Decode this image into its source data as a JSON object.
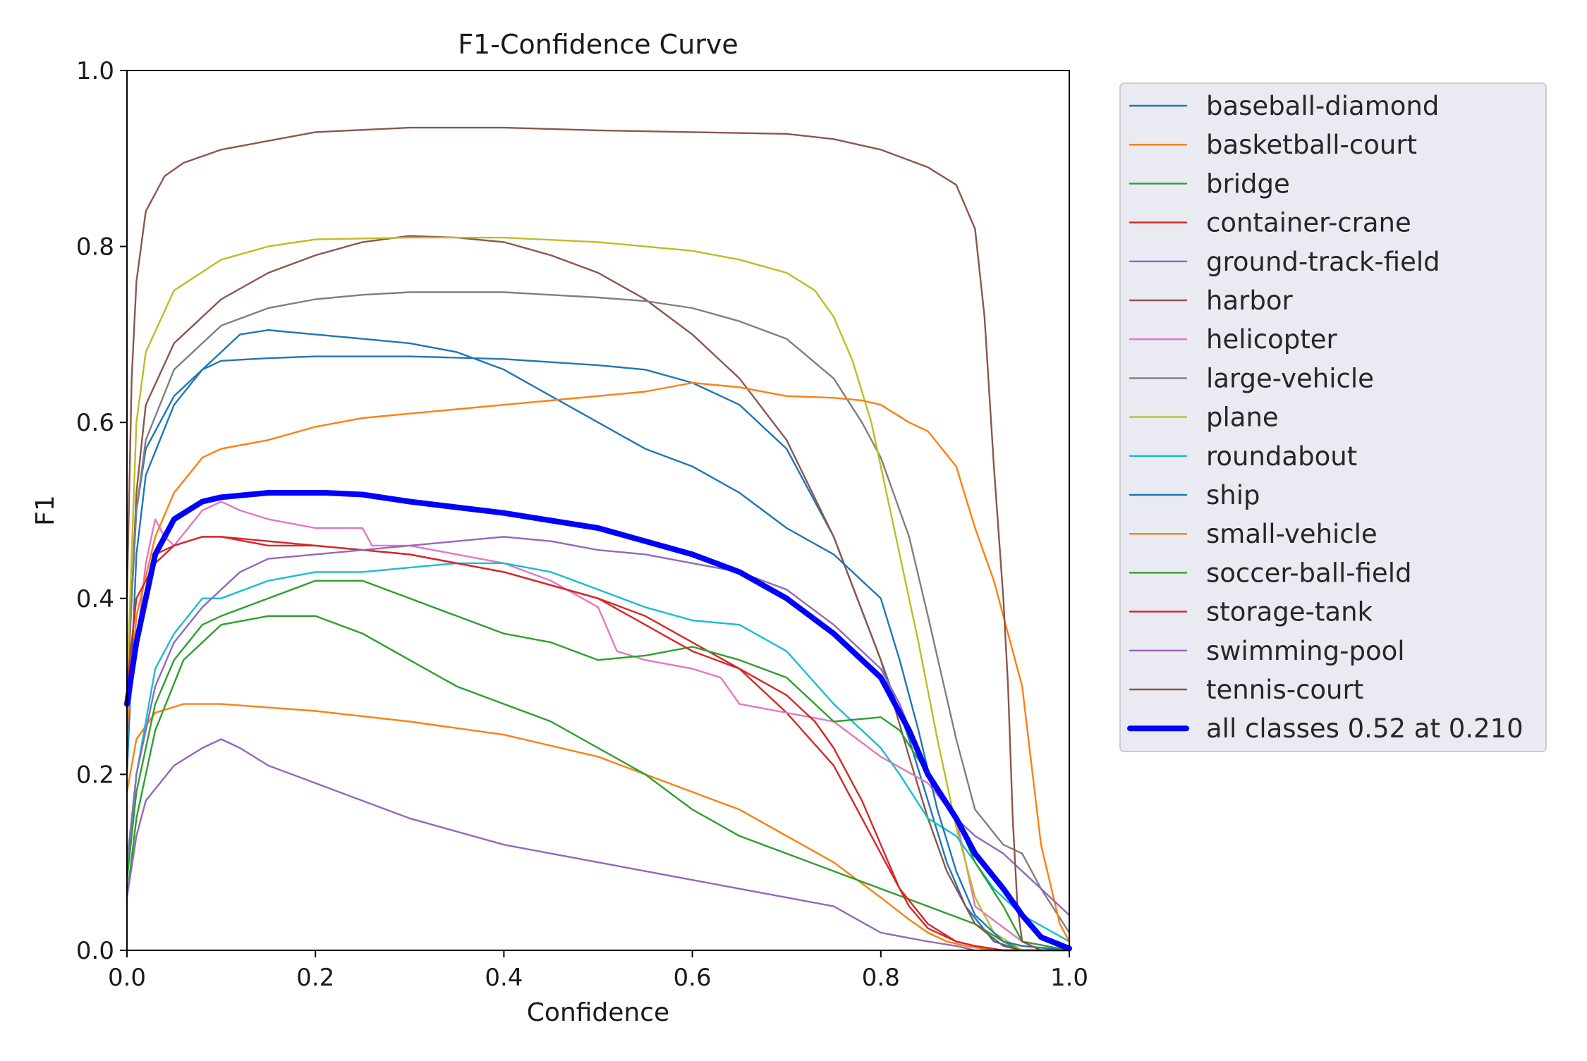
{
  "chart_data": {
    "type": "line",
    "title": "F1-Confidence Curve",
    "xlabel": "Confidence",
    "ylabel": "F1",
    "xlim": [
      0,
      1
    ],
    "ylim": [
      0,
      1
    ],
    "grid": false,
    "legend_position": "outside-right",
    "x_ticks": [
      "0.0",
      "0.2",
      "0.4",
      "0.6",
      "0.8",
      "1.0"
    ],
    "y_ticks": [
      "0.0",
      "0.2",
      "0.4",
      "0.6",
      "0.8",
      "1.0"
    ],
    "series": [
      {
        "name": "baseball-diamond",
        "color": "#1f77b4",
        "x": [
          0,
          0.01,
          0.02,
          0.05,
          0.08,
          0.1,
          0.15,
          0.2,
          0.3,
          0.4,
          0.5,
          0.55,
          0.6,
          0.65,
          0.7,
          0.75,
          0.8,
          0.83,
          0.85,
          0.87,
          0.89,
          0.92,
          0.95,
          1.0
        ],
        "y": [
          0.3,
          0.5,
          0.57,
          0.63,
          0.66,
          0.67,
          0.673,
          0.675,
          0.675,
          0.672,
          0.665,
          0.66,
          0.645,
          0.62,
          0.57,
          0.47,
          0.33,
          0.24,
          0.17,
          0.1,
          0.05,
          0.01,
          0.0,
          0.0
        ]
      },
      {
        "name": "basketball-court",
        "color": "#ff7f0e",
        "x": [
          0,
          0.01,
          0.03,
          0.06,
          0.1,
          0.2,
          0.3,
          0.4,
          0.5,
          0.55,
          0.6,
          0.65,
          0.7,
          0.75,
          0.8,
          0.83,
          0.85,
          0.87,
          0.89,
          0.92,
          0.95,
          0.98,
          1.0
        ],
        "y": [
          0.18,
          0.24,
          0.27,
          0.28,
          0.28,
          0.272,
          0.26,
          0.245,
          0.22,
          0.2,
          0.18,
          0.16,
          0.13,
          0.1,
          0.06,
          0.035,
          0.02,
          0.01,
          0.005,
          0.0,
          0.0,
          0.0,
          0.0
        ]
      },
      {
        "name": "bridge",
        "color": "#2ca02c",
        "x": [
          0,
          0.01,
          0.03,
          0.06,
          0.1,
          0.15,
          0.2,
          0.25,
          0.3,
          0.35,
          0.4,
          0.45,
          0.5,
          0.55,
          0.6,
          0.65,
          0.7,
          0.75,
          0.8,
          0.85,
          0.9,
          0.93,
          0.95,
          1.0
        ],
        "y": [
          0.06,
          0.15,
          0.25,
          0.33,
          0.37,
          0.38,
          0.38,
          0.36,
          0.33,
          0.3,
          0.28,
          0.26,
          0.23,
          0.2,
          0.16,
          0.13,
          0.11,
          0.09,
          0.07,
          0.05,
          0.03,
          0.01,
          0.0,
          0.0
        ]
      },
      {
        "name": "container-crane",
        "color": "#d62728",
        "x": [
          0,
          0.03,
          0.05,
          0.08,
          0.1,
          0.15,
          0.2,
          0.3,
          0.4,
          0.5,
          0.55,
          0.6,
          0.65,
          0.7,
          0.75,
          0.77,
          0.8,
          0.83,
          0.85,
          0.88,
          0.9,
          0.93,
          0.95,
          1.0
        ],
        "y": [
          0.29,
          0.45,
          0.46,
          0.47,
          0.47,
          0.46,
          0.46,
          0.45,
          0.43,
          0.4,
          0.38,
          0.35,
          0.32,
          0.27,
          0.21,
          0.17,
          0.11,
          0.05,
          0.025,
          0.01,
          0.005,
          0.0,
          0.0,
          0.0
        ]
      },
      {
        "name": "ground-track-field",
        "color": "#9467bd",
        "x": [
          0,
          0.01,
          0.02,
          0.05,
          0.08,
          0.1,
          0.12,
          0.15,
          0.2,
          0.3,
          0.4,
          0.5,
          0.6,
          0.7,
          0.75,
          0.8,
          0.85,
          0.88,
          0.9,
          0.95,
          1.0
        ],
        "y": [
          0.06,
          0.13,
          0.17,
          0.21,
          0.23,
          0.24,
          0.23,
          0.21,
          0.19,
          0.15,
          0.12,
          0.1,
          0.08,
          0.06,
          0.05,
          0.02,
          0.01,
          0.005,
          0.0,
          0.0,
          0.0
        ]
      },
      {
        "name": "harbor",
        "color": "#8c564b",
        "x": [
          0,
          0.01,
          0.02,
          0.05,
          0.1,
          0.15,
          0.2,
          0.25,
          0.3,
          0.35,
          0.4,
          0.45,
          0.5,
          0.55,
          0.6,
          0.65,
          0.7,
          0.75,
          0.8,
          0.83,
          0.85,
          0.87,
          0.9,
          0.93,
          0.95,
          1.0
        ],
        "y": [
          0.28,
          0.52,
          0.62,
          0.69,
          0.74,
          0.77,
          0.79,
          0.805,
          0.812,
          0.81,
          0.805,
          0.79,
          0.77,
          0.74,
          0.7,
          0.65,
          0.58,
          0.47,
          0.33,
          0.22,
          0.15,
          0.09,
          0.03,
          0.005,
          0.0,
          0.0
        ]
      },
      {
        "name": "helicopter",
        "color": "#e377c2",
        "x": [
          0,
          0.02,
          0.03,
          0.04,
          0.05,
          0.08,
          0.1,
          0.12,
          0.15,
          0.2,
          0.25,
          0.26,
          0.3,
          0.4,
          0.45,
          0.5,
          0.52,
          0.55,
          0.6,
          0.63,
          0.65,
          0.7,
          0.75,
          0.8,
          0.85,
          0.88,
          0.9,
          0.95,
          1.0
        ],
        "y": [
          0.25,
          0.44,
          0.49,
          0.47,
          0.46,
          0.5,
          0.51,
          0.5,
          0.49,
          0.48,
          0.48,
          0.46,
          0.46,
          0.44,
          0.42,
          0.39,
          0.34,
          0.33,
          0.32,
          0.31,
          0.28,
          0.27,
          0.26,
          0.22,
          0.19,
          0.15,
          0.05,
          0.01,
          0.0
        ]
      },
      {
        "name": "large-vehicle",
        "color": "#7f7f7f",
        "x": [
          0,
          0.01,
          0.02,
          0.05,
          0.1,
          0.15,
          0.2,
          0.25,
          0.3,
          0.4,
          0.5,
          0.55,
          0.6,
          0.65,
          0.7,
          0.75,
          0.78,
          0.8,
          0.83,
          0.85,
          0.88,
          0.9,
          0.93,
          0.95,
          0.97,
          1.0
        ],
        "y": [
          0.3,
          0.5,
          0.58,
          0.66,
          0.71,
          0.73,
          0.74,
          0.745,
          0.748,
          0.748,
          0.742,
          0.738,
          0.73,
          0.715,
          0.695,
          0.65,
          0.6,
          0.56,
          0.47,
          0.38,
          0.24,
          0.16,
          0.12,
          0.11,
          0.07,
          0.02
        ]
      },
      {
        "name": "plane",
        "color": "#bcbd22",
        "x": [
          0,
          0.01,
          0.02,
          0.05,
          0.1,
          0.15,
          0.2,
          0.3,
          0.4,
          0.5,
          0.6,
          0.65,
          0.7,
          0.73,
          0.75,
          0.77,
          0.79,
          0.8,
          0.82,
          0.84,
          0.86,
          0.88,
          0.9,
          0.92,
          0.95,
          1.0
        ],
        "y": [
          0.3,
          0.6,
          0.68,
          0.75,
          0.785,
          0.8,
          0.808,
          0.81,
          0.81,
          0.805,
          0.795,
          0.785,
          0.77,
          0.75,
          0.72,
          0.67,
          0.6,
          0.55,
          0.45,
          0.35,
          0.24,
          0.14,
          0.06,
          0.02,
          0.0,
          0.0
        ]
      },
      {
        "name": "roundabout",
        "color": "#17becf",
        "x": [
          0,
          0.01,
          0.03,
          0.05,
          0.08,
          0.1,
          0.15,
          0.2,
          0.25,
          0.3,
          0.35,
          0.4,
          0.45,
          0.5,
          0.55,
          0.6,
          0.65,
          0.7,
          0.75,
          0.8,
          0.82,
          0.85,
          0.88,
          0.9,
          0.92,
          0.95,
          1.0
        ],
        "y": [
          0.08,
          0.2,
          0.32,
          0.36,
          0.4,
          0.4,
          0.42,
          0.43,
          0.43,
          0.435,
          0.44,
          0.44,
          0.43,
          0.41,
          0.39,
          0.375,
          0.37,
          0.34,
          0.28,
          0.23,
          0.2,
          0.15,
          0.13,
          0.1,
          0.07,
          0.04,
          0.01
        ]
      },
      {
        "name": "ship",
        "color": "#1f77b4",
        "x": [
          0,
          0.01,
          0.02,
          0.05,
          0.08,
          0.1,
          0.12,
          0.15,
          0.2,
          0.25,
          0.3,
          0.35,
          0.4,
          0.45,
          0.5,
          0.55,
          0.6,
          0.65,
          0.7,
          0.75,
          0.8,
          0.82,
          0.84,
          0.86,
          0.88,
          0.9,
          0.93,
          0.95,
          1.0
        ],
        "y": [
          0.2,
          0.45,
          0.54,
          0.62,
          0.66,
          0.68,
          0.7,
          0.705,
          0.7,
          0.695,
          0.69,
          0.68,
          0.66,
          0.63,
          0.6,
          0.57,
          0.55,
          0.52,
          0.48,
          0.45,
          0.4,
          0.33,
          0.25,
          0.16,
          0.09,
          0.04,
          0.01,
          0.005,
          0.0
        ]
      },
      {
        "name": "small-vehicle",
        "color": "#ff7f0e",
        "x": [
          0,
          0.01,
          0.03,
          0.05,
          0.08,
          0.1,
          0.15,
          0.2,
          0.25,
          0.3,
          0.35,
          0.4,
          0.45,
          0.5,
          0.55,
          0.6,
          0.65,
          0.7,
          0.75,
          0.78,
          0.8,
          0.83,
          0.85,
          0.88,
          0.9,
          0.92,
          0.93,
          0.95,
          0.97,
          0.99,
          1.0
        ],
        "y": [
          0.25,
          0.38,
          0.47,
          0.52,
          0.56,
          0.57,
          0.58,
          0.595,
          0.605,
          0.61,
          0.615,
          0.62,
          0.625,
          0.63,
          0.635,
          0.645,
          0.64,
          0.63,
          0.628,
          0.625,
          0.62,
          0.6,
          0.59,
          0.55,
          0.48,
          0.42,
          0.38,
          0.3,
          0.12,
          0.03,
          0.01
        ]
      },
      {
        "name": "soccer-ball-field",
        "color": "#2ca02c",
        "x": [
          0,
          0.01,
          0.03,
          0.05,
          0.08,
          0.1,
          0.15,
          0.2,
          0.25,
          0.3,
          0.35,
          0.4,
          0.45,
          0.5,
          0.55,
          0.6,
          0.65,
          0.7,
          0.75,
          0.8,
          0.82,
          0.85,
          0.88,
          0.9,
          0.93,
          0.95,
          1.0
        ],
        "y": [
          0.08,
          0.18,
          0.28,
          0.33,
          0.37,
          0.38,
          0.4,
          0.42,
          0.42,
          0.4,
          0.38,
          0.36,
          0.35,
          0.33,
          0.335,
          0.345,
          0.33,
          0.31,
          0.26,
          0.265,
          0.25,
          0.2,
          0.15,
          0.1,
          0.05,
          0.01,
          0.0
        ]
      },
      {
        "name": "storage-tank",
        "color": "#d62728",
        "x": [
          0,
          0.01,
          0.03,
          0.05,
          0.08,
          0.1,
          0.15,
          0.2,
          0.3,
          0.4,
          0.5,
          0.55,
          0.6,
          0.65,
          0.7,
          0.73,
          0.75,
          0.78,
          0.8,
          0.82,
          0.85,
          0.88,
          0.9,
          0.93,
          0.95,
          1.0
        ],
        "y": [
          0.3,
          0.4,
          0.44,
          0.46,
          0.47,
          0.47,
          0.465,
          0.46,
          0.45,
          0.43,
          0.4,
          0.37,
          0.34,
          0.32,
          0.29,
          0.26,
          0.23,
          0.17,
          0.12,
          0.07,
          0.03,
          0.01,
          0.005,
          0.0,
          0.0,
          0.0
        ]
      },
      {
        "name": "swimming-pool",
        "color": "#9467bd",
        "x": [
          0,
          0.01,
          0.03,
          0.05,
          0.08,
          0.1,
          0.12,
          0.15,
          0.2,
          0.25,
          0.3,
          0.35,
          0.4,
          0.45,
          0.5,
          0.55,
          0.6,
          0.65,
          0.7,
          0.75,
          0.8,
          0.82,
          0.85,
          0.88,
          0.9,
          0.93,
          0.95,
          0.97,
          1.0
        ],
        "y": [
          0.1,
          0.2,
          0.3,
          0.35,
          0.39,
          0.41,
          0.43,
          0.445,
          0.45,
          0.455,
          0.46,
          0.465,
          0.47,
          0.465,
          0.455,
          0.45,
          0.44,
          0.43,
          0.41,
          0.37,
          0.32,
          0.28,
          0.2,
          0.15,
          0.13,
          0.11,
          0.09,
          0.07,
          0.04
        ]
      },
      {
        "name": "tennis-court",
        "color": "#8c564b",
        "x": [
          0,
          0.005,
          0.01,
          0.02,
          0.04,
          0.06,
          0.1,
          0.15,
          0.2,
          0.3,
          0.4,
          0.5,
          0.6,
          0.7,
          0.75,
          0.8,
          0.85,
          0.88,
          0.9,
          0.91,
          0.92,
          0.93,
          0.935,
          0.94,
          0.945,
          0.95,
          0.97,
          1.0
        ],
        "y": [
          0.4,
          0.65,
          0.76,
          0.84,
          0.88,
          0.895,
          0.91,
          0.92,
          0.93,
          0.935,
          0.935,
          0.932,
          0.93,
          0.928,
          0.922,
          0.91,
          0.89,
          0.87,
          0.82,
          0.72,
          0.55,
          0.4,
          0.3,
          0.15,
          0.05,
          0.01,
          0.0,
          0.0
        ]
      },
      {
        "name": "all classes 0.52 at 0.210",
        "color": "#0000ff",
        "bold": true,
        "x": [
          0,
          0.01,
          0.02,
          0.03,
          0.05,
          0.08,
          0.1,
          0.15,
          0.21,
          0.25,
          0.3,
          0.4,
          0.5,
          0.55,
          0.6,
          0.65,
          0.7,
          0.75,
          0.8,
          0.83,
          0.85,
          0.88,
          0.9,
          0.93,
          0.95,
          0.97,
          1.0
        ],
        "y": [
          0.28,
          0.35,
          0.4,
          0.45,
          0.49,
          0.51,
          0.515,
          0.52,
          0.52,
          0.518,
          0.51,
          0.497,
          0.48,
          0.465,
          0.45,
          0.43,
          0.4,
          0.36,
          0.31,
          0.25,
          0.2,
          0.15,
          0.11,
          0.07,
          0.04,
          0.015,
          0.002
        ]
      }
    ]
  }
}
